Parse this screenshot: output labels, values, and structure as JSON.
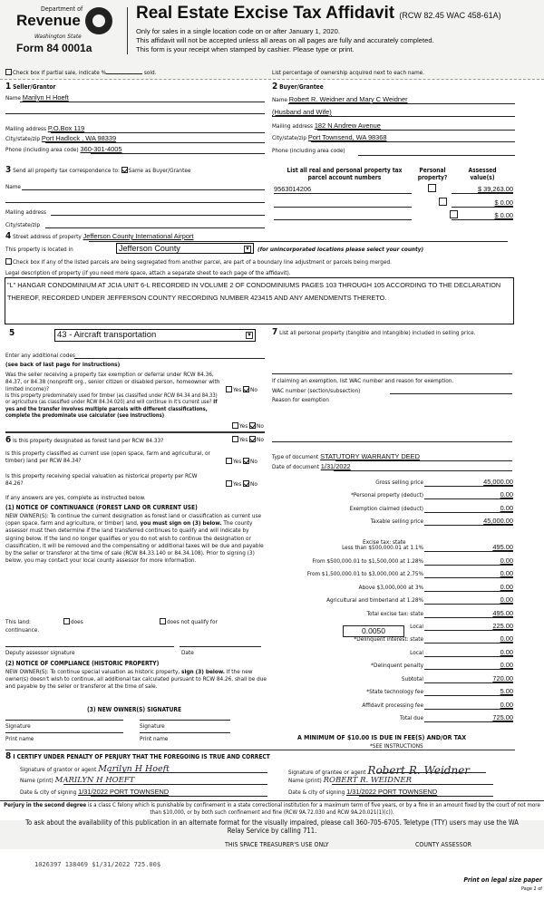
{
  "header": {
    "dept": "Department of",
    "revenue": "Revenue",
    "state": "Washington State",
    "form": "Form 84 0001a",
    "title": "Real Estate Excise Tax Affidavit",
    "rcw": "(RCW 82.45 WAC 458-61A)",
    "line1": "Only for sales in a single location code on or after January 1, 2020.",
    "line2": "This affidavit will not be accepted unless all areas on all pages are fully and accurately completed.",
    "line3": "This form is your receipt when stamped by cashier. Please type or print."
  },
  "partial": {
    "label": "Check box if partial sale, indicate %",
    "sold": "sold.",
    "checked": false,
    "ownership_note": "List percentage of ownership acquired next to each name."
  },
  "seller": {
    "num": "1",
    "title": "Seller/Grantor",
    "name_label": "Name",
    "name": "Marilyn H Hoeft",
    "mail_label": "Mailing address",
    "mail": "P.O.Box 119",
    "city_label": "City/state/zip",
    "city": "Port Hadlock , WA 98339",
    "phone_label": "Phone (including area code)",
    "phone": "360-301-4005"
  },
  "buyer": {
    "num": "2",
    "title": "Buyer/Grantee",
    "name_label": "Name",
    "name": "Robert R. Weidner and Mary C Weidner",
    "name2": "(Husband and Wife)",
    "mail_label": "Mailing address",
    "mail": "182 N Andrew Avenue",
    "city_label": "City/state/zip",
    "city": "Port Townsend, WA 98368",
    "phone_label": "Phone (including area code)"
  },
  "correspondence": {
    "num": "3",
    "label": "Send all property tax correspondence to:",
    "same_label": "Same as Buyer/Grantee",
    "same_checked": true,
    "name_label": "Name",
    "mail_label": "Mailing address",
    "city_label": "City/state/zip"
  },
  "parcels": {
    "headers": [
      "List all real and personal property tax parcel account numbers",
      "Personal property?",
      "Assessed value(s)"
    ],
    "rows": [
      {
        "number": "9563014206",
        "personal": false,
        "value": "$ 39,263.00"
      },
      {
        "number": "",
        "personal": false,
        "value": "$ 0.00"
      },
      {
        "number": "",
        "personal": false,
        "value": "$ 0.00"
      }
    ]
  },
  "property": {
    "num": "4",
    "street_label": "Street address of property",
    "street": "Jefferson County International Airport",
    "located_label": "This property is located in",
    "county": "Jefferson County",
    "county_note": "(for unincorporated locations please select your county)",
    "segregated_label": "Check box if any of the listed parcels are being segregated from another parcel, are part of a boundary line adjustment or parcels being merged.",
    "legal_label": "Legal description of property (if you need more space, attach a separate sheet to each page of the affidavit).",
    "legal": "\"L\" HANGAR CONDOMINIUM AT JCIA UNIT 6-L RECORDED IN VOLUME 2 OF CONDOMINIUMS PAGES 103 THROUGH 105 ACCORDING TO THE DECLARATION THEREOF, RECORDED UNDER JEFFERSON COUNTY RECORDING NUMBER 423415 AND ANY AMENDMENTS THERETO."
  },
  "section5": {
    "num": "5",
    "use_code": "43 - Aircraft transportation",
    "codes_label": "Enter any additional codes",
    "codes_note": "(see back of last page for instructions)",
    "q1": "Was the seller receiving a property tax exemption or deferral under RCW 84.36, 84.37, or 84.38 (nonprofit org., senior citizen or disabled person, homeowner with limited income)?",
    "q2": "Is this property predominately used for timber (as classified under RCW 84.34 and 84.33) or agriculture (as classified under RCW 84.34.020) and will continue in it's current use?",
    "q2_bold": "If yes and the transfer involves multiple parcels with different classifications, complete the predominate use calculator (see instructions)",
    "yes": "Yes",
    "no": "No"
  },
  "section6": {
    "num": "6",
    "q1": "Is this property designated as forest land per RCW 84.33?",
    "q2": "Is this property classified as current use (open space, farm and agricultural, or timber) land per RCW 84.34?",
    "q3": "Is this property receiving special valuation as historical property per RCW 84.26?",
    "if_yes": "If any answers are yes, complete as instructed below.",
    "n1_title": "(1) NOTICE OF CONTINUANCE (FOREST LAND OR CURRENT USE)",
    "n1_text_a": "NEW OWNER(S): To continue the current designation as forest land or classification as current use (open space, farm and agriculture, or timber) land,",
    "n1_bold": "you must sign on (3) below.",
    "n1_text_b": "The county assessor must then determine if the land transferred continues to qualify and will indicate by signing below. If the land no longer qualifies or you do not wish to continue the designation or classification, it will be removed and the compensating or additional taxes will be due and payable by the seller or transferor at the time of sale (RCW 84.33.140 or 84.34.108). Prior to signing (3) below, you may contact your local county assessor for more information.",
    "this_land": "This land:",
    "does": "does",
    "does_not": "does not qualify for",
    "continuance": "continuance.",
    "deputy": "Deputy assessor signature",
    "date": "Date",
    "n2_title": "(2) NOTICE OF COMPLIANCE (HISTORIC PROPERTY)",
    "n2_text_a": "NEW OWNER(S): To continue special valuation as historic property,",
    "n2_bold": "sign (3) below.",
    "n2_text_b": "If the new owner(s) doesn't wish to continue, all additional tax calculated pursuant to RCW 84.26, shall be due and payable by the seller or transferor at the time of sale.",
    "n3_title": "(3) NEW OWNER(S) SIGNATURE",
    "signature": "Signature",
    "print_name": "Print name"
  },
  "section7": {
    "num": "7",
    "label": "List all personal property (tangible and intangible) included in selling price.",
    "exempt_label": "If claiming an exemption, list WAC number and reason for exemption.",
    "wac_label": "WAC number (section/subsection)",
    "reason_label": "Reason for exemption",
    "doc_type_label": "Type of document",
    "doc_type": "STATUTORY WARRANTY DEED",
    "doc_date_label": "Date of document",
    "doc_date": "1/31/2022",
    "local_rate": "0.0050",
    "excise_header": "Excise tax: state",
    "minimum": "A MINIMUM OF $10.00 IS DUE IN FEE(S) AND/OR TAX",
    "see": "*SEE INSTRUCTIONS"
  },
  "tax_rows": [
    {
      "label": "Gross selling price",
      "value": "45,000.00"
    },
    {
      "label": "*Personal property (deduct)",
      "value": "0.00"
    },
    {
      "label": "Exemption claimed (deduct)",
      "value": "0.00"
    },
    {
      "label": "Taxable selling price",
      "value": "45,000.00"
    },
    {
      "label": "",
      "value": ""
    },
    {
      "label": "Less than $500,000.01 at 1.1%",
      "value": "495.00"
    },
    {
      "label": "From $500,000.01 to $1,500,000 at 1.28%",
      "value": "0.00"
    },
    {
      "label": "From $1,500,000.01 to $3,000,000 at 2.75%",
      "value": "0.00"
    },
    {
      "label": "Above $3,000,000 at 3%",
      "value": "0.00"
    },
    {
      "label": "Agricultural and timberland at 1.28%",
      "value": "0.00"
    },
    {
      "label": "Total excise tax: state",
      "value": "495.00"
    },
    {
      "label": "Local",
      "value": "225.00"
    },
    {
      "label": "*Delinquent interest: state",
      "value": "0.00"
    },
    {
      "label": "Local",
      "value": "0.00"
    },
    {
      "label": "*Delinquent penalty",
      "value": "0.00"
    },
    {
      "label": "Subtotal",
      "value": "720.00"
    },
    {
      "label": "*State technology fee",
      "value": "5.00"
    },
    {
      "label": "Affidavit processing fee",
      "value": "0.00"
    },
    {
      "label": "Total due",
      "value": "725.00"
    }
  ],
  "section8": {
    "num": "8",
    "title": "I CERTIFY UNDER PENALTY OF PERJURY THAT THE FOREGOING IS TRUE AND CORRECT",
    "grantor_sig_label": "Signature of grantor or agent",
    "grantor_sig": "Marilyn H Hoeft",
    "grantor_name_label": "Name (print)",
    "grantor_name": "MARILYN H HOEFT",
    "grantor_date_label": "Date & city of signing",
    "grantor_date": "1/31/2022 PORT TOWNSEND",
    "grantee_sig_label": "Signature of grantee or agent",
    "grantee_sig": "Robert R. Weidner",
    "grantee_name_label": "Name (print)",
    "grantee_name": "ROBERT R. WEIDNER",
    "grantee_date_label": "Date & city of signing",
    "grantee_date": "1/31/2022 PORT TOWNSEND"
  },
  "footer": {
    "perjury_bold": "Perjury in the second degree",
    "perjury": "is a class C felony which is punishable by confinement in a state correctional institution for a maximum term of five years, or by a fine in an amount fixed by the court of not more than $10,000, or by both such confinement and fine (RCW 9A.72.030 and RCW 9A.20.021(1)(c)).",
    "access": "To ask about the availability of this publication in an alternate format for the visually impaired, please call 360-705-6705. Teletype (TTY) users may use the WA Relay Service by calling 711.",
    "treasurer": "THIS SPACE TREASURER'S USE ONLY",
    "assessor": "COUNTY ASSESSOR",
    "stamp": "1026397 138469 $1/31/2022 725.00$",
    "legal_paper": "Print on legal size paper",
    "page": "Page 2 of"
  }
}
